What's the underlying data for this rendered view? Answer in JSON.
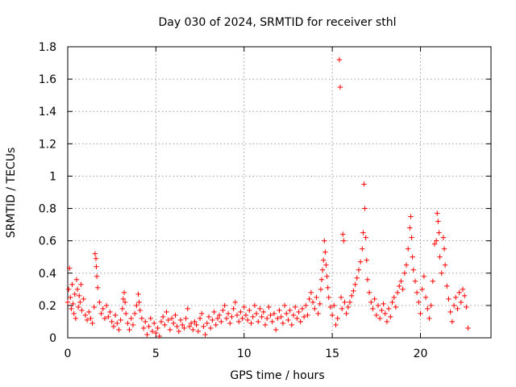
{
  "chart_data": {
    "type": "scatter",
    "title": "Day 030 of 2024, SRMTID for receiver sthl",
    "xlabel": "GPS time / hours",
    "ylabel": "SRMTID / TECUs",
    "xlim": [
      0,
      24
    ],
    "ylim": [
      0,
      1.8
    ],
    "xticks": [
      "0",
      "5",
      "10",
      "15",
      "20"
    ],
    "yticks": [
      "0",
      "0.2",
      "0.4",
      "0.6",
      "0.8",
      "1",
      "1.2",
      "1.4",
      "1.6",
      "1.8"
    ],
    "xtick_values": [
      0,
      5,
      10,
      15,
      20
    ],
    "ytick_values": [
      0,
      0.2,
      0.4,
      0.6,
      0.8,
      1.0,
      1.2,
      1.4,
      1.6,
      1.8
    ],
    "grid": true,
    "marker": "+",
    "color": "#ff0000",
    "series": [
      {
        "name": "SRMTID",
        "points": [
          [
            0.0,
            0.22
          ],
          [
            0.05,
            0.3
          ],
          [
            0.1,
            0.43
          ],
          [
            0.15,
            0.25
          ],
          [
            0.2,
            0.18
          ],
          [
            0.25,
            0.33
          ],
          [
            0.3,
            0.21
          ],
          [
            0.35,
            0.15
          ],
          [
            0.4,
            0.27
          ],
          [
            0.45,
            0.12
          ],
          [
            0.5,
            0.36
          ],
          [
            0.55,
            0.3
          ],
          [
            0.6,
            0.19
          ],
          [
            0.65,
            0.26
          ],
          [
            0.7,
            0.22
          ],
          [
            0.75,
            0.33
          ],
          [
            0.8,
            0.17
          ],
          [
            0.9,
            0.24
          ],
          [
            1.0,
            0.14
          ],
          [
            1.1,
            0.11
          ],
          [
            1.2,
            0.16
          ],
          [
            1.3,
            0.12
          ],
          [
            1.4,
            0.09
          ],
          [
            1.5,
            0.19
          ],
          [
            1.55,
            0.52
          ],
          [
            1.6,
            0.49
          ],
          [
            1.62,
            0.44
          ],
          [
            1.65,
            0.38
          ],
          [
            1.7,
            0.31
          ],
          [
            1.8,
            0.22
          ],
          [
            1.9,
            0.15
          ],
          [
            2.0,
            0.18
          ],
          [
            2.1,
            0.12
          ],
          [
            2.2,
            0.2
          ],
          [
            2.3,
            0.13
          ],
          [
            2.4,
            0.16
          ],
          [
            2.5,
            0.1
          ],
          [
            2.6,
            0.07
          ],
          [
            2.7,
            0.14
          ],
          [
            2.8,
            0.09
          ],
          [
            2.9,
            0.05
          ],
          [
            3.0,
            0.11
          ],
          [
            3.1,
            0.18
          ],
          [
            3.15,
            0.24
          ],
          [
            3.2,
            0.28
          ],
          [
            3.25,
            0.22
          ],
          [
            3.3,
            0.15
          ],
          [
            3.4,
            0.09
          ],
          [
            3.5,
            0.05
          ],
          [
            3.6,
            0.12
          ],
          [
            3.7,
            0.08
          ],
          [
            3.8,
            0.15
          ],
          [
            3.9,
            0.2
          ],
          [
            4.0,
            0.27
          ],
          [
            4.05,
            0.22
          ],
          [
            4.1,
            0.17
          ],
          [
            4.2,
            0.12
          ],
          [
            4.3,
            0.06
          ],
          [
            4.4,
            0.1
          ],
          [
            4.5,
            0.02
          ],
          [
            4.6,
            0.07
          ],
          [
            4.7,
            0.12
          ],
          [
            4.8,
            0.04
          ],
          [
            4.9,
            0.09
          ],
          [
            5.0,
            0.03
          ],
          [
            5.1,
            0.06
          ],
          [
            5.2,
            0.01
          ],
          [
            5.3,
            0.1
          ],
          [
            5.4,
            0.13
          ],
          [
            5.5,
            0.08
          ],
          [
            5.6,
            0.16
          ],
          [
            5.7,
            0.11
          ],
          [
            5.8,
            0.05
          ],
          [
            5.9,
            0.12
          ],
          [
            6.0,
            0.09
          ],
          [
            6.1,
            0.14
          ],
          [
            6.2,
            0.07
          ],
          [
            6.3,
            0.04
          ],
          [
            6.4,
            0.11
          ],
          [
            6.5,
            0.08
          ],
          [
            6.6,
            0.06
          ],
          [
            6.7,
            0.12
          ],
          [
            6.8,
            0.18
          ],
          [
            6.9,
            0.07
          ],
          [
            7.0,
            0.09
          ],
          [
            7.1,
            0.05
          ],
          [
            7.2,
            0.1
          ],
          [
            7.3,
            0.08
          ],
          [
            7.4,
            0.04
          ],
          [
            7.5,
            0.12
          ],
          [
            7.6,
            0.15
          ],
          [
            7.7,
            0.07
          ],
          [
            7.8,
            0.02
          ],
          [
            7.9,
            0.09
          ],
          [
            8.0,
            0.13
          ],
          [
            8.1,
            0.06
          ],
          [
            8.2,
            0.11
          ],
          [
            8.3,
            0.16
          ],
          [
            8.4,
            0.08
          ],
          [
            8.5,
            0.12
          ],
          [
            8.6,
            0.14
          ],
          [
            8.7,
            0.1
          ],
          [
            8.8,
            0.17
          ],
          [
            8.9,
            0.2
          ],
          [
            9.0,
            0.12
          ],
          [
            9.1,
            0.15
          ],
          [
            9.2,
            0.09
          ],
          [
            9.3,
            0.13
          ],
          [
            9.4,
            0.18
          ],
          [
            9.5,
            0.22
          ],
          [
            9.6,
            0.14
          ],
          [
            9.7,
            0.1
          ],
          [
            9.8,
            0.16
          ],
          [
            9.9,
            0.12
          ],
          [
            10.0,
            0.19
          ],
          [
            10.1,
            0.14
          ],
          [
            10.2,
            0.11
          ],
          [
            10.3,
            0.17
          ],
          [
            10.4,
            0.09
          ],
          [
            10.5,
            0.13
          ],
          [
            10.6,
            0.2
          ],
          [
            10.7,
            0.15
          ],
          [
            10.8,
            0.1
          ],
          [
            10.9,
            0.18
          ],
          [
            11.0,
            0.13
          ],
          [
            11.1,
            0.16
          ],
          [
            11.2,
            0.08
          ],
          [
            11.3,
            0.12
          ],
          [
            11.4,
            0.19
          ],
          [
            11.5,
            0.14
          ],
          [
            11.6,
            0.1
          ],
          [
            11.7,
            0.15
          ],
          [
            11.8,
            0.05
          ],
          [
            11.9,
            0.12
          ],
          [
            12.0,
            0.17
          ],
          [
            12.1,
            0.13
          ],
          [
            12.2,
            0.09
          ],
          [
            12.3,
            0.2
          ],
          [
            12.4,
            0.15
          ],
          [
            12.5,
            0.11
          ],
          [
            12.6,
            0.17
          ],
          [
            12.7,
            0.08
          ],
          [
            12.8,
            0.14
          ],
          [
            12.9,
            0.19
          ],
          [
            13.0,
            0.12
          ],
          [
            13.1,
            0.16
          ],
          [
            13.2,
            0.1
          ],
          [
            13.3,
            0.18
          ],
          [
            13.4,
            0.13
          ],
          [
            13.5,
            0.2
          ],
          [
            13.6,
            0.14
          ],
          [
            13.7,
            0.24
          ],
          [
            13.8,
            0.28
          ],
          [
            13.9,
            0.22
          ],
          [
            14.0,
            0.18
          ],
          [
            14.1,
            0.25
          ],
          [
            14.2,
            0.15
          ],
          [
            14.3,
            0.21
          ],
          [
            14.35,
            0.3
          ],
          [
            14.4,
            0.36
          ],
          [
            14.45,
            0.42
          ],
          [
            14.5,
            0.48
          ],
          [
            14.55,
            0.6
          ],
          [
            14.6,
            0.53
          ],
          [
            14.65,
            0.45
          ],
          [
            14.7,
            0.38
          ],
          [
            14.75,
            0.31
          ],
          [
            14.8,
            0.25
          ],
          [
            14.9,
            0.19
          ],
          [
            15.0,
            0.14
          ],
          [
            15.1,
            0.2
          ],
          [
            15.2,
            0.08
          ],
          [
            15.3,
            0.12
          ],
          [
            15.4,
            1.72
          ],
          [
            15.45,
            1.55
          ],
          [
            15.5,
            0.25
          ],
          [
            15.55,
            0.18
          ],
          [
            15.6,
            0.64
          ],
          [
            15.65,
            0.6
          ],
          [
            15.7,
            0.22
          ],
          [
            15.8,
            0.15
          ],
          [
            15.9,
            0.19
          ],
          [
            16.0,
            0.22
          ],
          [
            16.1,
            0.26
          ],
          [
            16.2,
            0.29
          ],
          [
            16.3,
            0.33
          ],
          [
            16.4,
            0.37
          ],
          [
            16.5,
            0.42
          ],
          [
            16.6,
            0.47
          ],
          [
            16.7,
            0.55
          ],
          [
            16.75,
            0.65
          ],
          [
            16.8,
            0.95
          ],
          [
            16.85,
            0.8
          ],
          [
            16.9,
            0.62
          ],
          [
            16.95,
            0.48
          ],
          [
            17.0,
            0.36
          ],
          [
            17.1,
            0.28
          ],
          [
            17.2,
            0.22
          ],
          [
            17.3,
            0.18
          ],
          [
            17.4,
            0.24
          ],
          [
            17.5,
            0.14
          ],
          [
            17.6,
            0.2
          ],
          [
            17.7,
            0.12
          ],
          [
            17.8,
            0.17
          ],
          [
            17.9,
            0.21
          ],
          [
            18.0,
            0.15
          ],
          [
            18.1,
            0.1
          ],
          [
            18.2,
            0.18
          ],
          [
            18.3,
            0.13
          ],
          [
            18.4,
            0.22
          ],
          [
            18.5,
            0.25
          ],
          [
            18.6,
            0.19
          ],
          [
            18.7,
            0.28
          ],
          [
            18.8,
            0.32
          ],
          [
            18.9,
            0.35
          ],
          [
            19.0,
            0.3
          ],
          [
            19.1,
            0.4
          ],
          [
            19.2,
            0.45
          ],
          [
            19.3,
            0.55
          ],
          [
            19.4,
            0.68
          ],
          [
            19.45,
            0.75
          ],
          [
            19.5,
            0.62
          ],
          [
            19.55,
            0.5
          ],
          [
            19.6,
            0.42
          ],
          [
            19.7,
            0.35
          ],
          [
            19.8,
            0.28
          ],
          [
            19.9,
            0.22
          ],
          [
            20.0,
            0.15
          ],
          [
            20.1,
            0.3
          ],
          [
            20.2,
            0.38
          ],
          [
            20.3,
            0.25
          ],
          [
            20.4,
            0.18
          ],
          [
            20.5,
            0.12
          ],
          [
            20.6,
            0.2
          ],
          [
            20.7,
            0.35
          ],
          [
            20.8,
            0.58
          ],
          [
            20.9,
            0.6
          ],
          [
            20.95,
            0.77
          ],
          [
            21.0,
            0.72
          ],
          [
            21.05,
            0.65
          ],
          [
            21.1,
            0.5
          ],
          [
            21.2,
            0.4
          ],
          [
            21.3,
            0.62
          ],
          [
            21.35,
            0.55
          ],
          [
            21.4,
            0.45
          ],
          [
            21.5,
            0.32
          ],
          [
            21.6,
            0.24
          ],
          [
            21.7,
            0.16
          ],
          [
            21.8,
            0.1
          ],
          [
            21.9,
            0.2
          ],
          [
            22.0,
            0.25
          ],
          [
            22.1,
            0.18
          ],
          [
            22.2,
            0.28
          ],
          [
            22.3,
            0.22
          ],
          [
            22.4,
            0.3
          ],
          [
            22.5,
            0.26
          ],
          [
            22.6,
            0.19
          ],
          [
            22.7,
            0.06
          ]
        ]
      }
    ]
  }
}
